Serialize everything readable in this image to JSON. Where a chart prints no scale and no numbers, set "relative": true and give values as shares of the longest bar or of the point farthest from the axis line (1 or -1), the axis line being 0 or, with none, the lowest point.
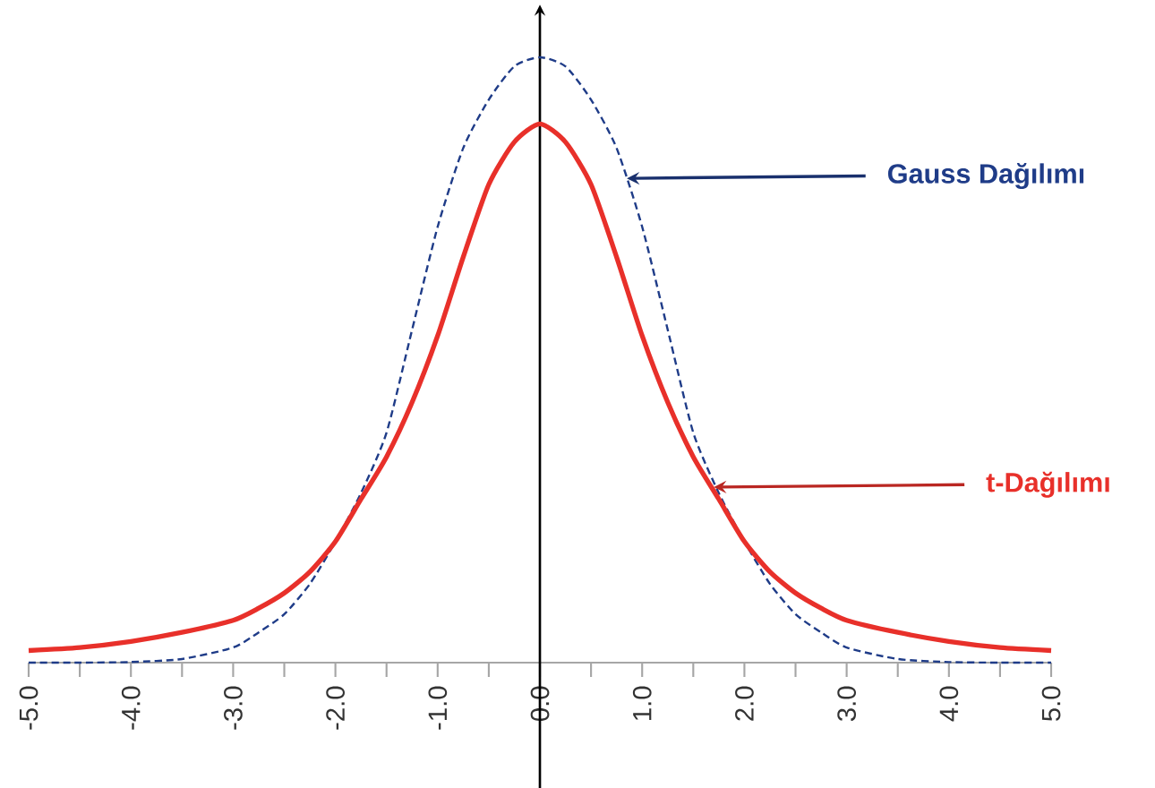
{
  "chart_data": {
    "type": "line",
    "relative": true,
    "marker": "none",
    "x": [
      -5,
      -4.5,
      -4,
      -3.5,
      -3,
      -2.75,
      -2.5,
      -2.25,
      -2,
      -1.75,
      -1.5,
      -1.25,
      -1,
      -0.75,
      -0.5,
      -0.25,
      0,
      0.25,
      0.5,
      0.75,
      1,
      1.25,
      1.5,
      1.75,
      2,
      2.25,
      2.5,
      2.75,
      3,
      3.5,
      4,
      4.5,
      5
    ],
    "xlim": [
      -5,
      5
    ],
    "xticks": [
      {
        "value": -5,
        "label": "-5.0"
      },
      {
        "value": -4.5,
        "label": null
      },
      {
        "value": -4,
        "label": "-4.0"
      },
      {
        "value": -3.5,
        "label": null
      },
      {
        "value": -3,
        "label": "-3.0"
      },
      {
        "value": -2.5,
        "label": null
      },
      {
        "value": -2,
        "label": "-2.0"
      },
      {
        "value": -1.5,
        "label": null
      },
      {
        "value": -1,
        "label": "-1.0"
      },
      {
        "value": -0.5,
        "label": null
      },
      {
        "value": 0,
        "label": "0.0"
      },
      {
        "value": 0.5,
        "label": null
      },
      {
        "value": 1,
        "label": "1.0"
      },
      {
        "value": 1.5,
        "label": null
      },
      {
        "value": 2,
        "label": "2.0"
      },
      {
        "value": 2.5,
        "label": null
      },
      {
        "value": 3,
        "label": "3.0"
      },
      {
        "value": 3.5,
        "label": null
      },
      {
        "value": 4,
        "label": "4.0"
      },
      {
        "value": 4.5,
        "label": null
      },
      {
        "value": 5,
        "label": "5.0"
      }
    ],
    "series": [
      {
        "color": "#1f3c88",
        "line_style": "dashed",
        "values": [
          0,
          0,
          0.001,
          0.006,
          0.025,
          0.05,
          0.08,
          0.13,
          0.2,
          0.28,
          0.38,
          0.55,
          0.72,
          0.85,
          0.93,
          0.985,
          1,
          0.985,
          0.93,
          0.85,
          0.72,
          0.55,
          0.38,
          0.28,
          0.2,
          0.13,
          0.08,
          0.05,
          0.025,
          0.006,
          0.001,
          0,
          0
        ]
      },
      {
        "color": "#e8302a",
        "line_style": "solid",
        "values": [
          0.02,
          0.025,
          0.035,
          0.05,
          0.07,
          0.09,
          0.115,
          0.15,
          0.2,
          0.27,
          0.34,
          0.43,
          0.54,
          0.67,
          0.79,
          0.86,
          0.89,
          0.86,
          0.79,
          0.67,
          0.54,
          0.43,
          0.34,
          0.27,
          0.2,
          0.15,
          0.115,
          0.09,
          0.07,
          0.05,
          0.035,
          0.025,
          0.02
        ]
      }
    ],
    "annotations": [
      {
        "text": "Gauss Dağılımı",
        "x": 0.85,
        "y": 0.8
      },
      {
        "text": "t-Dağılımı",
        "x": 1.7,
        "y": 0.29
      }
    ]
  }
}
